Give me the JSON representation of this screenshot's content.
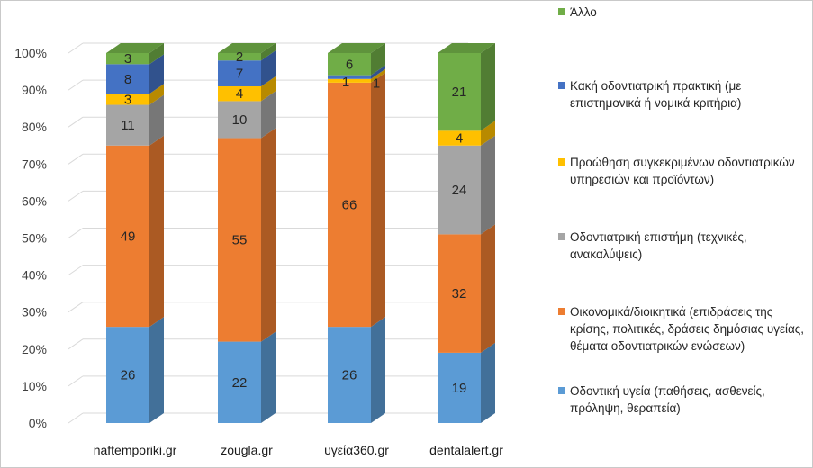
{
  "chart_data": {
    "type": "bar",
    "stacked": true,
    "percent": true,
    "categories": [
      "naftemporiki.gr",
      "zougla.gr",
      "υγεία360.gr",
      "dentalalert.gr"
    ],
    "series": [
      {
        "name": "Οδοντική υγεία (παθήσεις, ασθενείς, πρόληψη, θεραπεία)",
        "color": "#5b9bd5",
        "values": [
          26,
          22,
          26,
          19
        ]
      },
      {
        "name": "Οικονομικά/διοικητικά (επιδράσεις της κρίσης, πολιτικές, δράσεις δημόσιας υγείας, θέματα οδοντιατρικών ενώσεων)",
        "color": "#ed7d31",
        "values": [
          49,
          55,
          66,
          32
        ]
      },
      {
        "name": "Οδοντιατρική επιστήμη (τεχνικές, ανακαλύψεις)",
        "color": "#a5a5a5",
        "values": [
          11,
          10,
          0,
          24
        ]
      },
      {
        "name": "Προώθηση συγκεκριμένων οδοντιατρικών υπηρεσιών και προϊόντων)",
        "color": "#ffc000",
        "values": [
          3,
          4,
          1,
          4
        ]
      },
      {
        "name": "Κακή οδοντιατρική πρακτική (με επιστημονικά ή νομικά κριτήρια)",
        "color": "#4472c4",
        "values": [
          8,
          7,
          1,
          0
        ]
      },
      {
        "name": "Άλλο",
        "color": "#70ad47",
        "values": [
          3,
          2,
          6,
          21
        ]
      }
    ],
    "data_labels": [
      [
        "26",
        "22",
        "26",
        "19"
      ],
      [
        "49",
        "55",
        "66",
        "32"
      ],
      [
        "11",
        "10",
        "",
        "24"
      ],
      [
        "3",
        "4",
        "1",
        "4"
      ],
      [
        "8",
        "7",
        "1",
        ""
      ],
      [
        "3",
        "2",
        "6",
        "21"
      ]
    ],
    "y_ticks": [
      "0%",
      "10%",
      "20%",
      "30%",
      "40%",
      "50%",
      "60%",
      "70%",
      "80%",
      "90%",
      "100%"
    ],
    "ylim": [
      0,
      100
    ],
    "legend_position": "right",
    "title": "",
    "xlabel": "",
    "ylabel": ""
  }
}
